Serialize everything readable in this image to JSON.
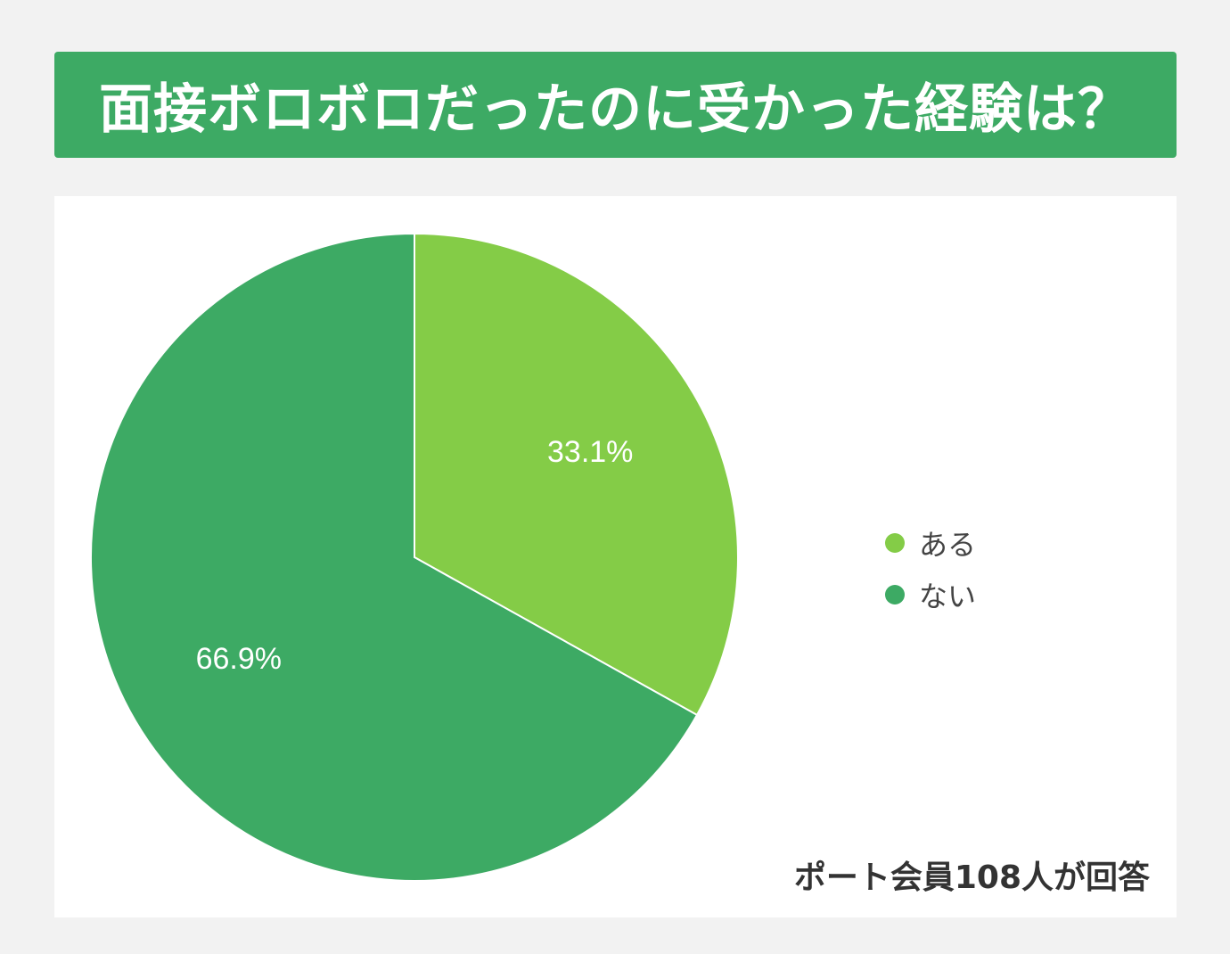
{
  "header": {
    "title": "面接ボロボロだったのに受かった経験は？"
  },
  "chart_data": {
    "type": "pie",
    "categories": [
      "ある",
      "ない"
    ],
    "values": [
      33.1,
      66.9
    ],
    "value_labels": [
      "33.1%",
      "66.9%"
    ],
    "colors": [
      "#84cc47",
      "#3daa64"
    ],
    "legend_position": "right",
    "start_angle": "12-o'clock, clockwise"
  },
  "footnote": "ポート会員108人が回答",
  "colors": {
    "banner": "#3daa64",
    "background": "#f2f2f2",
    "panel": "#ffffff"
  }
}
